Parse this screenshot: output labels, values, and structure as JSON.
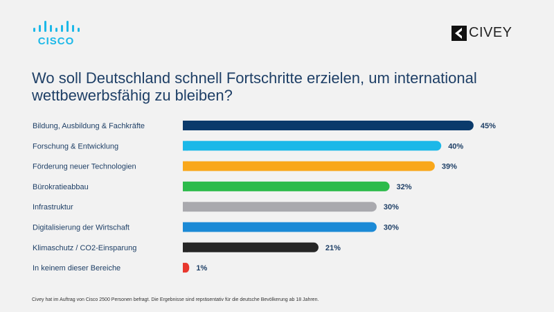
{
  "logos": {
    "cisco": "cisco",
    "civey": "CIVEY"
  },
  "chart_data": {
    "type": "bar",
    "orientation": "horizontal",
    "title": "Wo soll Deutschland schnell Fortschritte erzielen, um international wettbewerbsfähig zu bleiben?",
    "categories": [
      "Bildung, Ausbildung & Fachkräfte",
      "Forschung & Entwicklung",
      "Förderung neuer Technologien",
      "Bürokratieabbau",
      "Infrastruktur",
      "Digitalisierung der Wirtschaft",
      "Klimaschutz / CO2-Einsparung",
      "In keinem dieser Bereiche"
    ],
    "values": [
      45,
      40,
      39,
      32,
      30,
      30,
      21,
      1
    ],
    "value_labels": [
      "45%",
      "40%",
      "39%",
      "32%",
      "30%",
      "30%",
      "21%",
      "1%"
    ],
    "colors": [
      "#0b3a6b",
      "#1cb8e8",
      "#f9a71a",
      "#2dbb4b",
      "#a9a9ae",
      "#1b8ad6",
      "#262626",
      "#e8382e"
    ],
    "grid": false,
    "legend": "none"
  },
  "footnote": "Civey hat im Auftrag von Cisco 2500 Personen befragt. Die Ergebnisse sind repräsentativ für die deutsche Bevölkerung ab 18 Jahren."
}
